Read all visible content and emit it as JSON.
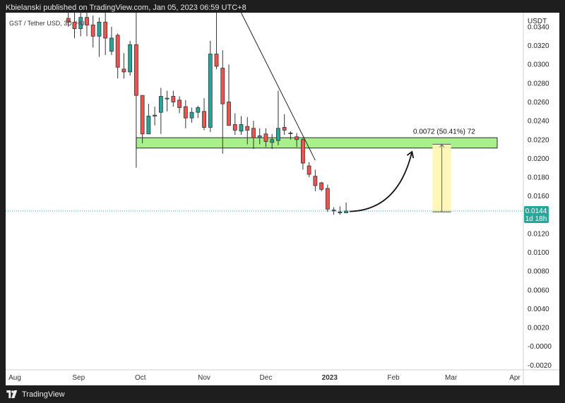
{
  "header": {
    "text": "Kbielanski published on TradingView.com, Jan 05, 2023 06:59 UTC+8"
  },
  "footer": {
    "brand": "TradingView",
    "logo_icon": "tradingview-logo-icon"
  },
  "chart": {
    "symbol_label": "GST / Tether USD, 3D, HU...",
    "currency": "USDT",
    "last_price_label": "0.0144",
    "countdown_label": "1d 18h",
    "measure_label": "0.0072 (50.41%) 72",
    "colors": {
      "up": "#26a69a",
      "down": "#ef5350",
      "zone_fill": "#a8f08c",
      "zone_border": "#2a2a2a",
      "measure_fill": "#fff6b3",
      "price_line": "#2aa4a4",
      "price_badge": "#27a69a"
    }
  },
  "chart_data": {
    "type": "candlestick",
    "currency": "USDT",
    "y_range": [
      -0.0025,
      0.0355
    ],
    "y_ticks": [
      "0.0340",
      "0.0320",
      "0.0300",
      "0.0280",
      "0.0260",
      "0.0240",
      "0.0220",
      "0.0200",
      "0.0180",
      "0.0160",
      "0.0140",
      "0.0120",
      "0.0100",
      "0.0080",
      "0.0060",
      "0.0040",
      "0.0020",
      "-0.0000",
      "-0.0020"
    ],
    "x_labels": [
      {
        "label": "Aug",
        "date": "2022-08-01"
      },
      {
        "label": "Sep",
        "date": "2022-09-01"
      },
      {
        "label": "Oct",
        "date": "2022-10-01"
      },
      {
        "label": "Nov",
        "date": "2022-11-01"
      },
      {
        "label": "Dec",
        "date": "2022-12-01"
      },
      {
        "label": "2023",
        "date": "2023-01-01"
      },
      {
        "label": "Feb",
        "date": "2023-02-01"
      },
      {
        "label": "Mar",
        "date": "2023-03-01"
      },
      {
        "label": "Apr",
        "date": "2023-04-01"
      }
    ],
    "candles": [
      {
        "date": "2022-08-27",
        "open": 0.0349,
        "high": 0.0358,
        "low": 0.034,
        "close": 0.0345
      },
      {
        "date": "2022-08-30",
        "open": 0.0345,
        "high": 0.0356,
        "low": 0.0328,
        "close": 0.0338
      },
      {
        "date": "2022-09-02",
        "open": 0.0338,
        "high": 0.036,
        "low": 0.033,
        "close": 0.035
      },
      {
        "date": "2022-09-05",
        "open": 0.035,
        "high": 0.0356,
        "low": 0.033,
        "close": 0.0342
      },
      {
        "date": "2022-09-08",
        "open": 0.0342,
        "high": 0.0352,
        "low": 0.0318,
        "close": 0.033
      },
      {
        "date": "2022-09-11",
        "open": 0.033,
        "high": 0.035,
        "low": 0.0308,
        "close": 0.0345
      },
      {
        "date": "2022-09-14",
        "open": 0.0345,
        "high": 0.0358,
        "low": 0.031,
        "close": 0.0328
      },
      {
        "date": "2022-09-17",
        "open": 0.0314,
        "high": 0.034,
        "low": 0.031,
        "close": 0.0328
      },
      {
        "date": "2022-09-20",
        "open": 0.0331,
        "high": 0.0333,
        "low": 0.0285,
        "close": 0.0297
      },
      {
        "date": "2022-09-23",
        "open": 0.0295,
        "high": 0.0312,
        "low": 0.0285,
        "close": 0.0292
      },
      {
        "date": "2022-09-26",
        "open": 0.0292,
        "high": 0.0325,
        "low": 0.0288,
        "close": 0.0321
      },
      {
        "date": "2022-09-29",
        "open": 0.0321,
        "high": 0.036,
        "low": 0.019,
        "close": 0.0267
      },
      {
        "date": "2022-10-02",
        "open": 0.0267,
        "high": 0.0267,
        "low": 0.0216,
        "close": 0.0226
      },
      {
        "date": "2022-10-05",
        "open": 0.0226,
        "high": 0.0258,
        "low": 0.0226,
        "close": 0.0245
      },
      {
        "date": "2022-10-08",
        "open": 0.0245,
        "high": 0.0255,
        "low": 0.0235,
        "close": 0.0246
      },
      {
        "date": "2022-10-11",
        "open": 0.0249,
        "high": 0.0275,
        "low": 0.0226,
        "close": 0.0266
      },
      {
        "date": "2022-10-14",
        "open": 0.0264,
        "high": 0.0272,
        "low": 0.025,
        "close": 0.0264
      },
      {
        "date": "2022-10-17",
        "open": 0.0266,
        "high": 0.0272,
        "low": 0.0255,
        "close": 0.026
      },
      {
        "date": "2022-10-20",
        "open": 0.0262,
        "high": 0.0266,
        "low": 0.0248,
        "close": 0.0254
      },
      {
        "date": "2022-10-23",
        "open": 0.0255,
        "high": 0.0262,
        "low": 0.0232,
        "close": 0.0243
      },
      {
        "date": "2022-10-26",
        "open": 0.0243,
        "high": 0.0254,
        "low": 0.0238,
        "close": 0.0249
      },
      {
        "date": "2022-10-29",
        "open": 0.0249,
        "high": 0.0256,
        "low": 0.0243,
        "close": 0.0254
      },
      {
        "date": "2022-11-01",
        "open": 0.025,
        "high": 0.0264,
        "low": 0.023,
        "close": 0.0233
      },
      {
        "date": "2022-11-04",
        "open": 0.0233,
        "high": 0.0325,
        "low": 0.0228,
        "close": 0.0311
      },
      {
        "date": "2022-11-07",
        "open": 0.0311,
        "high": 0.0365,
        "low": 0.0295,
        "close": 0.0298
      },
      {
        "date": "2022-11-10",
        "open": 0.0296,
        "high": 0.0315,
        "low": 0.0205,
        "close": 0.0258
      },
      {
        "date": "2022-11-13",
        "open": 0.026,
        "high": 0.03,
        "low": 0.0235,
        "close": 0.0235
      },
      {
        "date": "2022-11-16",
        "open": 0.0236,
        "high": 0.0248,
        "low": 0.0225,
        "close": 0.023
      },
      {
        "date": "2022-11-19",
        "open": 0.0229,
        "high": 0.0245,
        "low": 0.0225,
        "close": 0.0236
      },
      {
        "date": "2022-11-22",
        "open": 0.0234,
        "high": 0.0244,
        "low": 0.0215,
        "close": 0.023
      },
      {
        "date": "2022-11-25",
        "open": 0.0232,
        "high": 0.024,
        "low": 0.021,
        "close": 0.0222
      },
      {
        "date": "2022-11-28",
        "open": 0.0222,
        "high": 0.0232,
        "low": 0.0215,
        "close": 0.0224
      },
      {
        "date": "2022-12-01",
        "open": 0.0226,
        "high": 0.0232,
        "low": 0.0212,
        "close": 0.0218
      },
      {
        "date": "2022-12-04",
        "open": 0.0217,
        "high": 0.0226,
        "low": 0.021,
        "close": 0.022
      },
      {
        "date": "2022-12-07",
        "open": 0.0219,
        "high": 0.0272,
        "low": 0.0214,
        "close": 0.0232
      },
      {
        "date": "2022-12-10",
        "open": 0.0233,
        "high": 0.0247,
        "low": 0.0225,
        "close": 0.023
      },
      {
        "date": "2022-12-13",
        "open": 0.0227,
        "high": 0.0229,
        "low": 0.022,
        "close": 0.0227
      },
      {
        "date": "2022-12-16",
        "open": 0.0223,
        "high": 0.0227,
        "low": 0.0212,
        "close": 0.022
      },
      {
        "date": "2022-12-19",
        "open": 0.022,
        "high": 0.0222,
        "low": 0.0188,
        "close": 0.0195
      },
      {
        "date": "2022-12-22",
        "open": 0.0192,
        "high": 0.0196,
        "low": 0.018,
        "close": 0.0183
      },
      {
        "date": "2022-12-25",
        "open": 0.0181,
        "high": 0.0188,
        "low": 0.0165,
        "close": 0.0171
      },
      {
        "date": "2022-12-28",
        "open": 0.0174,
        "high": 0.0175,
        "low": 0.0165,
        "close": 0.0167
      },
      {
        "date": "2022-12-31",
        "open": 0.0168,
        "high": 0.0172,
        "low": 0.0143,
        "close": 0.0146
      },
      {
        "date": "2023-01-03",
        "open": 0.0144,
        "high": 0.0148,
        "low": 0.014,
        "close": 0.0145
      },
      {
        "date": "2023-01-06",
        "open": 0.0142,
        "high": 0.0149,
        "low": 0.014,
        "close": 0.0143
      },
      {
        "date": "2023-01-09",
        "open": 0.0142,
        "high": 0.0153,
        "low": 0.0142,
        "close": 0.0144
      }
    ],
    "annotations": {
      "resistance_zone": {
        "from_date": "2022-09-29",
        "to_date": "2023-04-01",
        "top": 0.0222,
        "bottom": 0.0211
      },
      "trendline": {
        "from": {
          "date": "2022-11-19",
          "price": 0.0365
        },
        "to": {
          "date": "2022-12-25",
          "price": 0.0198
        }
      },
      "curved_arrow": {
        "from": {
          "date": "2023-01-09",
          "price": 0.0145
        },
        "to": {
          "date": "2023-02-10",
          "price": 0.021
        }
      },
      "price_range_measure": {
        "date_from": "2023-02-20",
        "date_to": "2023-03-01",
        "from_price": 0.0143,
        "to_price": 0.0215,
        "label": "0.0072 (50.41%) 72"
      },
      "last_price_line": 0.0144
    }
  }
}
